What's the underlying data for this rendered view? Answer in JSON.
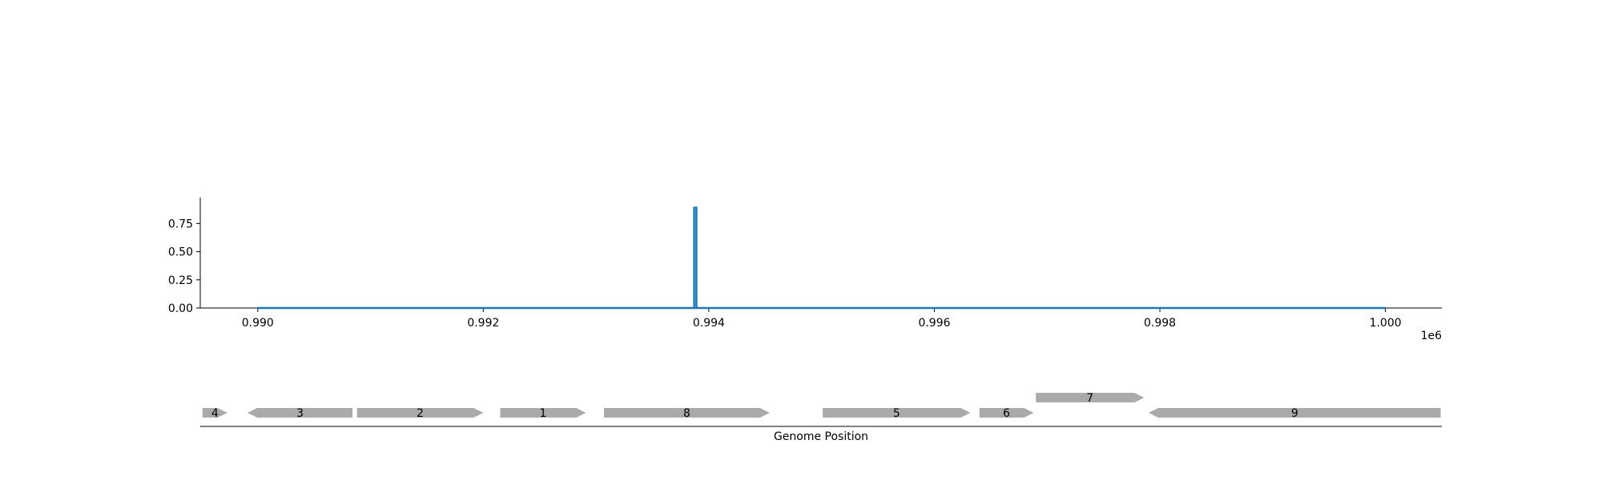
{
  "chart_data": [
    {
      "type": "line",
      "title": "",
      "xlabel": "",
      "ylabel": "",
      "x_offset_text": "1e6",
      "xlim": [
        0.98949,
        1.0005
      ],
      "ylim": [
        0,
        0.98
      ],
      "x_ticks": [
        0.99,
        0.992,
        0.994,
        0.996,
        0.998,
        1.0
      ],
      "x_tick_labels": [
        "0.990",
        "0.992",
        "0.994",
        "0.996",
        "0.998",
        "1.000"
      ],
      "y_ticks": [
        0.0,
        0.25,
        0.5,
        0.75
      ],
      "y_tick_labels": [
        "0.00",
        "0.25",
        "0.50",
        "0.75"
      ],
      "grid": false,
      "series": [
        {
          "color": "#1f77b4",
          "x": [
            0.99,
            0.99387,
            0.99387,
            0.99389,
            0.99389,
            1.0
          ],
          "y": [
            0,
            0,
            0.89,
            0.89,
            0,
            0
          ]
        }
      ]
    },
    {
      "type": "gene-track",
      "xlabel": "Genome Position",
      "xlim": [
        0.98949,
        1.0005
      ],
      "feature_color": "#aaaaaa",
      "features": [
        {
          "label": "4",
          "start": 0.98951,
          "end": 0.98973,
          "strand": "+",
          "row": 0
        },
        {
          "label": "3",
          "start": 0.98991,
          "end": 0.99084,
          "strand": "-",
          "row": 0
        },
        {
          "label": "2",
          "start": 0.99088,
          "end": 0.992,
          "strand": "+",
          "row": 0
        },
        {
          "label": "1",
          "start": 0.99215,
          "end": 0.99291,
          "strand": "+",
          "row": 0
        },
        {
          "label": "8",
          "start": 0.99307,
          "end": 0.99454,
          "strand": "+",
          "row": 0
        },
        {
          "label": "5",
          "start": 0.99501,
          "end": 0.99632,
          "strand": "+",
          "row": 0
        },
        {
          "label": "6",
          "start": 0.9964,
          "end": 0.99688,
          "strand": "+",
          "row": 0
        },
        {
          "label": "7",
          "start": 0.9969,
          "end": 0.99786,
          "strand": "+",
          "row": 1
        },
        {
          "label": "9",
          "start": 0.9979,
          "end": 1.00049,
          "strand": "-",
          "row": 0
        }
      ]
    }
  ]
}
